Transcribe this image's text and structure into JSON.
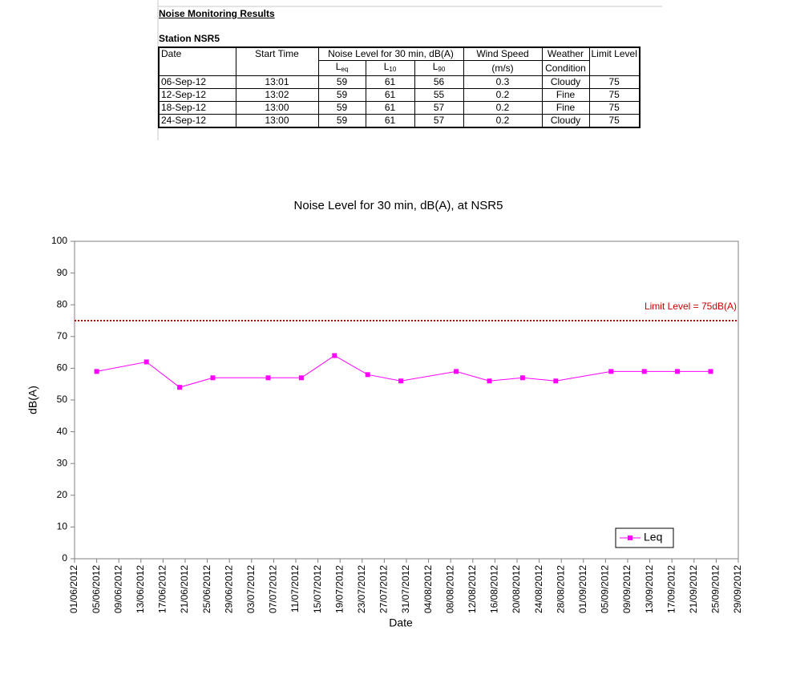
{
  "table": {
    "title": "Noise Monitoring Results",
    "station": "Station NSR5",
    "headers": {
      "date": "Date",
      "start": "Start Time",
      "noise": "Noise Level for 30 min, dB(A)",
      "wind": [
        "Wind Speed",
        "(m/s)"
      ],
      "weather": [
        "Weather",
        "Condition"
      ],
      "limit": "Limit Level"
    },
    "sub_headers": [
      {
        "base": "L",
        "sub": "eq"
      },
      {
        "base": "L",
        "sub": "10"
      },
      {
        "base": "L",
        "sub": "90"
      }
    ],
    "rows": [
      [
        "06-Sep-12",
        "13:01",
        59,
        61,
        56,
        0.3,
        "Cloudy",
        75
      ],
      [
        "12-Sep-12",
        "13:02",
        59,
        61,
        55,
        0.2,
        "Fine",
        75
      ],
      [
        "18-Sep-12",
        "13:00",
        59,
        61,
        57,
        0.2,
        "Fine",
        75
      ],
      [
        "24-Sep-12",
        "13:00",
        59,
        61,
        57,
        0.2,
        "Cloudy",
        75
      ]
    ]
  },
  "chart_data": {
    "type": "line",
    "title": "Noise Level for 30 min, dB(A), at NSR5",
    "x_label": "Date",
    "y_label": "dB(A)",
    "x": [
      "2012-06-05",
      "2012-06-14",
      "2012-06-20",
      "2012-06-26",
      "2012-07-06",
      "2012-07-12",
      "2012-07-18",
      "2012-07-24",
      "2012-07-30",
      "2012-08-09",
      "2012-08-15",
      "2012-08-21",
      "2012-08-27",
      "2012-09-06",
      "2012-09-12",
      "2012-09-18",
      "2012-09-24"
    ],
    "series": [
      {
        "name": "Leq",
        "color": "#ff00ff",
        "values": [
          59,
          62,
          54,
          57,
          57,
          57,
          64,
          58,
          56,
          59,
          56,
          57,
          56,
          59,
          59,
          59,
          59
        ]
      }
    ],
    "limit_line": {
      "value": 75,
      "label": "Limit Level = 75dB(A)",
      "color": "#cc0000"
    },
    "xlim": [
      "2012-06-01",
      "2012-09-29"
    ],
    "xticks": [
      {
        "value": "2012-06-01",
        "label": "01/06/2012"
      },
      {
        "value": "2012-06-05",
        "label": "05/06/2012"
      },
      {
        "value": "2012-06-09",
        "label": "09/06/2012"
      },
      {
        "value": "2012-06-13",
        "label": "13/06/2012"
      },
      {
        "value": "2012-06-17",
        "label": "17/06/2012"
      },
      {
        "value": "2012-06-21",
        "label": "21/06/2012"
      },
      {
        "value": "2012-06-25",
        "label": "25/06/2012"
      },
      {
        "value": "2012-06-29",
        "label": "29/06/2012"
      },
      {
        "value": "2012-07-03",
        "label": "03/07/2012"
      },
      {
        "value": "2012-07-07",
        "label": "07/07/2012"
      },
      {
        "value": "2012-07-11",
        "label": "11/07/2012"
      },
      {
        "value": "2012-07-15",
        "label": "15/07/2012"
      },
      {
        "value": "2012-07-19",
        "label": "19/07/2012"
      },
      {
        "value": "2012-07-23",
        "label": "23/07/2012"
      },
      {
        "value": "2012-07-27",
        "label": "27/07/2012"
      },
      {
        "value": "2012-07-31",
        "label": "31/07/2012"
      },
      {
        "value": "2012-08-04",
        "label": "04/08/2012"
      },
      {
        "value": "2012-08-08",
        "label": "08/08/2012"
      },
      {
        "value": "2012-08-12",
        "label": "12/08/2012"
      },
      {
        "value": "2012-08-16",
        "label": "16/08/2012"
      },
      {
        "value": "2012-08-20",
        "label": "20/08/2012"
      },
      {
        "value": "2012-08-24",
        "label": "24/08/2012"
      },
      {
        "value": "2012-08-28",
        "label": "28/08/2012"
      },
      {
        "value": "2012-09-01",
        "label": "01/09/2012"
      },
      {
        "value": "2012-09-05",
        "label": "05/09/2012"
      },
      {
        "value": "2012-09-09",
        "label": "09/09/2012"
      },
      {
        "value": "2012-09-13",
        "label": "13/09/2012"
      },
      {
        "value": "2012-09-17",
        "label": "17/09/2012"
      },
      {
        "value": "2012-09-21",
        "label": "21/09/2012"
      },
      {
        "value": "2012-09-25",
        "label": "25/09/2012"
      },
      {
        "value": "2012-09-29",
        "label": "29/09/2012"
      }
    ],
    "ylim": [
      0,
      100
    ],
    "yticks": [
      0,
      10,
      20,
      30,
      40,
      50,
      60,
      70,
      80,
      90,
      100
    ],
    "grid": false,
    "legend": "bottom-right"
  }
}
